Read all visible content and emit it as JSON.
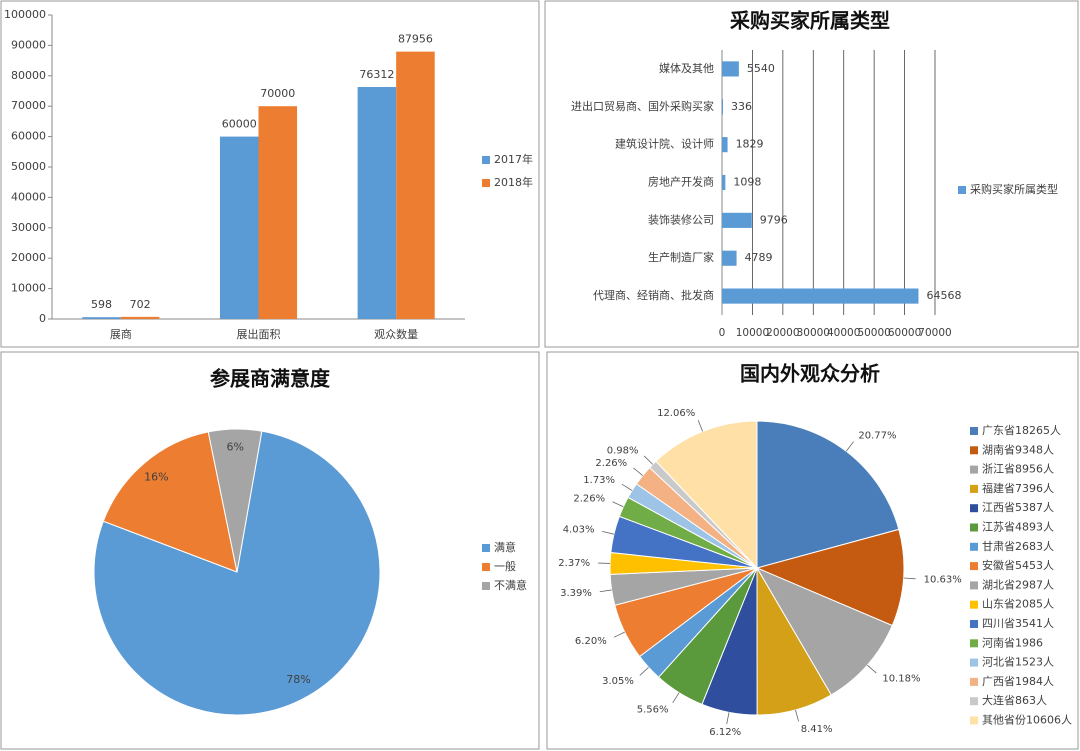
{
  "chart_data": [
    {
      "type": "bar",
      "orientation": "vertical",
      "categories": [
        "展商",
        "展出面积",
        "观众数量"
      ],
      "series": [
        {
          "name": "2017年",
          "color": "#5b9bd5",
          "values": [
            598,
            60000,
            76312
          ]
        },
        {
          "name": "2018年",
          "color": "#ed7d31",
          "values": [
            702,
            70000,
            87956
          ]
        }
      ],
      "ylim": [
        0,
        100000
      ],
      "yticks": [
        0,
        10000,
        20000,
        30000,
        40000,
        50000,
        60000,
        70000,
        80000,
        90000,
        100000
      ],
      "grid": false,
      "legend": "right"
    },
    {
      "type": "bar",
      "orientation": "horizontal",
      "title": "采购买家所属类型",
      "categories": [
        "媒体及其他",
        "进出口贸易商、国外采购买家",
        "建筑设计院、设计师",
        "房地产开发商",
        "装饰装修公司",
        "生产制造厂家",
        "代理商、经销商、批发商"
      ],
      "series": [
        {
          "name": "采购买家所属类型",
          "color": "#5b9bd5",
          "values": [
            5540,
            336,
            1829,
            1098,
            9796,
            4789,
            64568
          ]
        }
      ],
      "xlim": [
        0,
        70000
      ],
      "xticks": [
        0,
        10000,
        20000,
        30000,
        40000,
        50000,
        60000,
        70000
      ],
      "grid": true,
      "legend": "right"
    },
    {
      "type": "pie",
      "title": "参展商满意度",
      "categories": [
        "满意",
        "一般",
        "不满意"
      ],
      "values": [
        78,
        16,
        6
      ],
      "value_labels": [
        "78%",
        "16%",
        "6%"
      ],
      "colors": [
        "#5b9bd5",
        "#ed7d31",
        "#a5a5a5"
      ],
      "legend": "right"
    },
    {
      "type": "pie",
      "title": "国内外观众分析",
      "categories": [
        "广东省18265人",
        "湖南省9348人",
        "浙江省8956人",
        "福建省7396人",
        "江西省5387人",
        "江苏省4893人",
        "甘肃省2683人",
        "安徽省5453人",
        "湖北省2987人",
        "山东省2085人",
        "四川省3541人",
        "河南省1986",
        "河北省1523人",
        "广西省1984人",
        "大连省863人",
        "其他省份10606人"
      ],
      "values": [
        20.77,
        10.63,
        10.18,
        8.41,
        6.12,
        5.56,
        3.05,
        6.2,
        3.39,
        2.37,
        4.03,
        2.26,
        1.73,
        2.26,
        0.98,
        12.06
      ],
      "value_labels": [
        "20.77%",
        "10.63%",
        "10.18%",
        "8.41%",
        "6.12%",
        "5.56%",
        "3.05%",
        "6.20%",
        "3.39%",
        "2.37%",
        "4.03%",
        "2.26%",
        "1.73%",
        "2.26%",
        "0.98%",
        "12.06%"
      ],
      "colors": [
        "#4a7ebb",
        "#c55a11",
        "#a5a5a5",
        "#d4a017",
        "#2f4f9e",
        "#5a9a3c",
        "#5b9bd5",
        "#ed7d31",
        "#a5a5a5",
        "#ffc000",
        "#4472c4",
        "#70ad47",
        "#9dc3e6",
        "#f4b183",
        "#c9c9c9",
        "#ffe0a6"
      ],
      "legend": "right"
    }
  ]
}
